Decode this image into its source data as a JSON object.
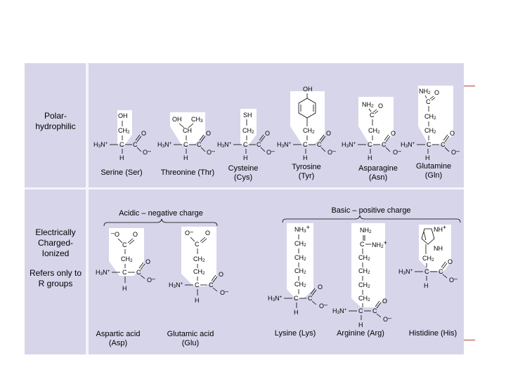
{
  "sections": {
    "polar": "Polar-\nhydrophilic",
    "charged": "Electrically\nCharged-\nIonized",
    "note": "Refers only to\nR groups"
  },
  "headers": {
    "acidic": "Acidic – negative charge",
    "basic": "Basic – positive charge"
  },
  "amino_acids": {
    "ser": "Serine (Ser)",
    "thr": "Threonine (Thr)",
    "cys": "Cysteine\n(Cys)",
    "tyr": "Tyrosine\n(Tyr)",
    "asn": "Asparagine\n(Asn)",
    "gln": "Glutamine\n(Gln)",
    "asp": "Aspartic acid\n(Asp)",
    "glu": "Glutamic acid\n(Glu)",
    "lys": "Lysine (Lys)",
    "arg": "Arginine (Arg)",
    "his": "Histidine (His)"
  },
  "colors": {
    "panel": "#d7d5ea",
    "rgroup": "#ffffff",
    "accent": "#c0392b"
  }
}
